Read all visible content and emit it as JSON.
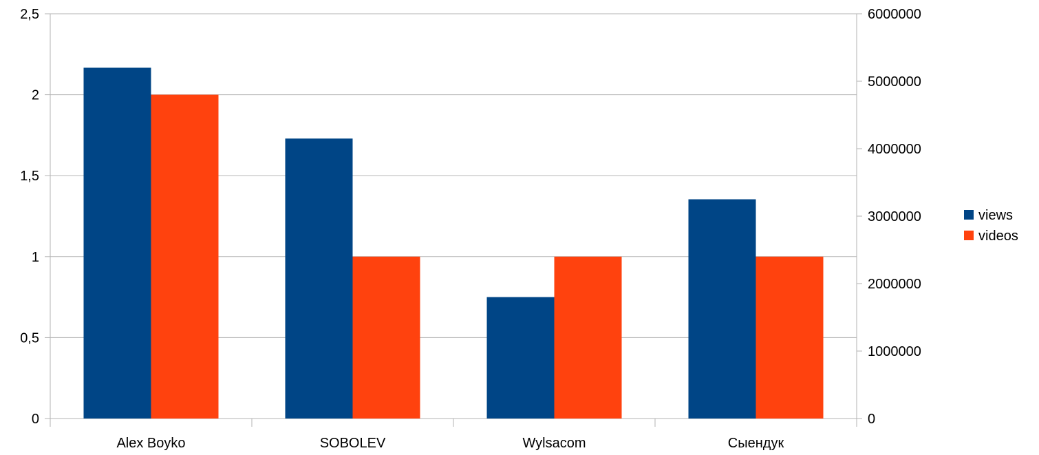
{
  "chart_data": {
    "type": "bar",
    "categories": [
      "Alex Boyko",
      "SOBOLEV",
      "Wylsacom",
      "Сыендук"
    ],
    "series": [
      {
        "name": "views",
        "axis": "right",
        "values": [
          5200000,
          4150000,
          1800000,
          3250000
        ],
        "color": "#004586"
      },
      {
        "name": "videos",
        "axis": "left",
        "values": [
          2,
          1,
          1,
          1
        ],
        "color": "#ff420e"
      }
    ],
    "y_left": {
      "min": 0,
      "max": 2.5,
      "ticks": [
        0,
        0.5,
        1,
        1.5,
        2,
        2.5
      ],
      "tick_labels": [
        "0",
        "0,5",
        "1",
        "1,5",
        "2",
        "2,5"
      ]
    },
    "y_right": {
      "min": 0,
      "max": 6000000,
      "ticks": [
        0,
        1000000,
        2000000,
        3000000,
        4000000,
        5000000,
        6000000
      ],
      "tick_labels": [
        "0",
        "1000000",
        "2000000",
        "3000000",
        "4000000",
        "5000000",
        "6000000"
      ]
    },
    "title": "",
    "xlabel": "",
    "ylabel": "",
    "grid": true,
    "legend_position": "right"
  }
}
